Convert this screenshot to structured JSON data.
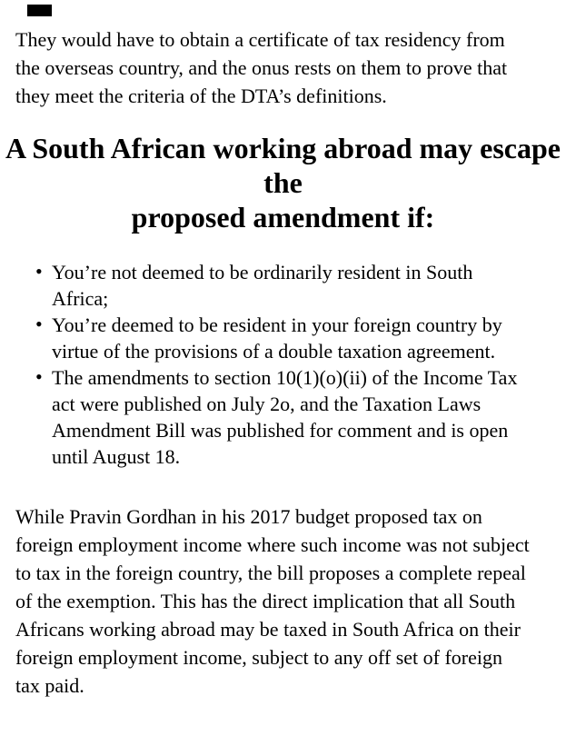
{
  "colors": {
    "background": "#ffffff",
    "text": "#000000",
    "marker": "#000000"
  },
  "marker": {
    "name": "black rectangle marker top-left"
  },
  "content": {
    "intro_paragraph": "They would have to obtain a certificate of tax residency from\nthe overseas country, and the onus rests on them to prove that\nthey meet the criteria of the DTA’s definitions.",
    "heading": "A South African working abroad may escape the\nproposed amendment if:",
    "bullet_char": "•",
    "bullets": [
      "You’re not deemed to be ordinarily resident in South\nAfrica;",
      "You’re deemed to be resident in your foreign country by\nvirtue of the provisions of a double taxation agreement.",
      "The amendments to section 10(1)(o)(ii) of the Income Tax\nact were published on July 2o, and the Taxation Laws\nAmendment Bill was published for comment and is open\nuntil August 18."
    ],
    "closing_paragraph": "While Pravin Gordhan in his 2017 budget proposed tax on\nforeign employment income where such income was not subject\nto tax in the foreign country, the bill proposes a complete repeal\nof the exemption. This has the direct implication that all South\nAfricans working abroad may be taxed in South Africa on their\nforeign employment income, subject to any off set of foreign\ntax paid."
  }
}
